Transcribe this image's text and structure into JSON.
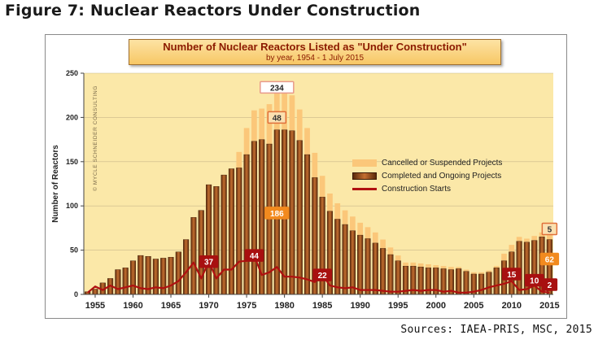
{
  "figure_title": "Figure 7: Nuclear Reactors Under Construction",
  "sources": "Sources: IAEA-PRIS, MSC, 2015",
  "colors": {
    "plot_bg": "#fbe8a8",
    "cancelled": "#fbc77a",
    "completed_dark": "#5a2a0c",
    "completed_light": "#c46e30",
    "line": "#b01010",
    "title_text": "#8b1a00"
  },
  "chart_data": {
    "type": "bar",
    "title": "Number of Nuclear Reactors Listed as \"Under Construction\"",
    "subtitle": "by year, 1954 - 1 July 2015",
    "ylabel": "Number of Reactors",
    "watermark": "© MYCLE SCHNEIDER CONSULTING",
    "ylim": [
      0,
      250
    ],
    "yticks": [
      0,
      50,
      100,
      150,
      200,
      250
    ],
    "xticks": [
      "1955",
      "1960",
      "1965",
      "1970",
      "1975",
      "1980",
      "1985",
      "1990",
      "1995",
      "2000",
      "2005",
      "2010",
      "2015"
    ],
    "x": [
      1954,
      1955,
      1956,
      1957,
      1958,
      1959,
      1960,
      1961,
      1962,
      1963,
      1964,
      1965,
      1966,
      1967,
      1968,
      1969,
      1970,
      1971,
      1972,
      1973,
      1974,
      1975,
      1976,
      1977,
      1978,
      1979,
      1980,
      1981,
      1982,
      1983,
      1984,
      1985,
      1986,
      1987,
      1988,
      1989,
      1990,
      1991,
      1992,
      1993,
      1994,
      1995,
      1996,
      1997,
      1998,
      1999,
      2000,
      2001,
      2002,
      2003,
      2004,
      2005,
      2006,
      2007,
      2008,
      2009,
      2010,
      2011,
      2012,
      2013,
      2014,
      2015
    ],
    "series": [
      {
        "name": "Completed and Ongoing Projects",
        "values": [
          3,
          6,
          13,
          18,
          28,
          30,
          38,
          44,
          43,
          40,
          41,
          42,
          48,
          62,
          87,
          95,
          124,
          122,
          135,
          142,
          143,
          158,
          173,
          175,
          170,
          186,
          186,
          185,
          174,
          158,
          132,
          110,
          94,
          85,
          79,
          72,
          67,
          63,
          58,
          52,
          45,
          38,
          32,
          32,
          31,
          30,
          30,
          29,
          28,
          29,
          26,
          23,
          23,
          25,
          30,
          38,
          48,
          60,
          59,
          61,
          65,
          62
        ]
      },
      {
        "name": "Cancelled or Suspended Projects",
        "values": [
          0,
          0,
          0,
          0,
          0,
          0,
          0,
          0,
          0,
          0,
          0,
          0,
          0,
          0,
          0,
          0,
          0,
          0,
          0,
          0,
          18,
          30,
          35,
          35,
          45,
          48,
          46,
          40,
          35,
          30,
          28,
          24,
          20,
          18,
          16,
          16,
          14,
          13,
          12,
          10,
          8,
          6,
          4,
          4,
          4,
          4,
          3,
          3,
          3,
          2,
          2,
          2,
          2,
          2,
          2,
          8,
          8,
          5,
          4,
          5,
          5,
          5
        ]
      },
      {
        "name": "Construction Starts",
        "values": [
          2,
          9,
          5,
          10,
          6,
          8,
          10,
          7,
          6,
          8,
          7,
          10,
          15,
          25,
          36,
          18,
          37,
          18,
          28,
          28,
          37,
          38,
          44,
          22,
          25,
          31,
          20,
          20,
          19,
          17,
          14,
          22,
          10,
          8,
          7,
          8,
          5,
          5,
          5,
          4,
          3,
          3,
          4,
          5,
          4,
          5,
          5,
          3,
          4,
          2,
          2,
          3,
          5,
          8,
          10,
          12,
          15,
          5,
          6,
          10,
          3,
          2
        ]
      }
    ],
    "annotations": [
      {
        "text": "234",
        "x": 1979,
        "y": 234,
        "style": "white-box"
      },
      {
        "text": "48",
        "x": 1979,
        "y": 200,
        "style": "orange-box"
      },
      {
        "text": "186",
        "x": 1979,
        "y": 92,
        "style": "orange-fill"
      },
      {
        "text": "37",
        "x": 1970,
        "y": 37,
        "style": "red-fill"
      },
      {
        "text": "44",
        "x": 1976,
        "y": 44,
        "style": "red-fill"
      },
      {
        "text": "22",
        "x": 1985,
        "y": 22,
        "style": "red-fill"
      },
      {
        "text": "15",
        "x": 2010,
        "y": 23,
        "style": "red-fill"
      },
      {
        "text": "10",
        "x": 2013,
        "y": 16,
        "style": "red-fill"
      },
      {
        "text": "5",
        "x": 2015,
        "y": 74,
        "style": "orange-box"
      },
      {
        "text": "62",
        "x": 2015,
        "y": 40,
        "style": "orange-fill"
      },
      {
        "text": "2",
        "x": 2015,
        "y": 11,
        "style": "red-fill"
      }
    ]
  }
}
